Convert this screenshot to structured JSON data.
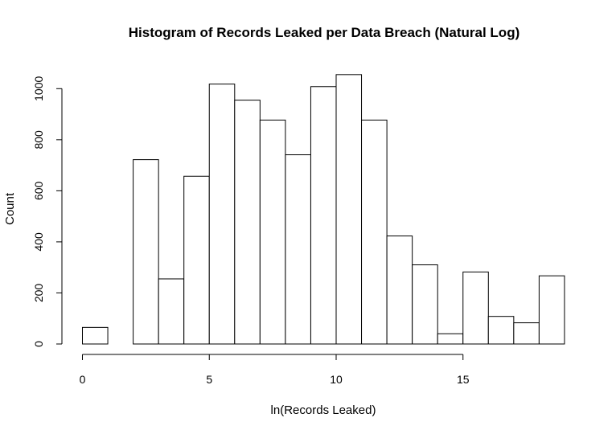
{
  "chart_data": {
    "type": "histogram",
    "title": "Histogram of Records Leaked per Data Breach (Natural Log)",
    "xlabel": "ln(Records Leaked)",
    "ylabel": "Count",
    "bin_edges": [
      0,
      1,
      2,
      3,
      4,
      5,
      6,
      7,
      8,
      9,
      10,
      11,
      12,
      13,
      14,
      15,
      16,
      17,
      18,
      19
    ],
    "counts": [
      65,
      0,
      722,
      255,
      657,
      1018,
      955,
      877,
      741,
      1008,
      1055,
      877,
      423,
      310,
      40,
      282,
      108,
      83,
      267
    ],
    "xlim": [
      0,
      19
    ],
    "ylim": [
      0,
      1055
    ],
    "x_ticks": [
      "0",
      "5",
      "10",
      "15"
    ],
    "y_ticks": [
      "0",
      "200",
      "400",
      "600",
      "800",
      "1000"
    ],
    "grid": false,
    "legend": "none"
  }
}
